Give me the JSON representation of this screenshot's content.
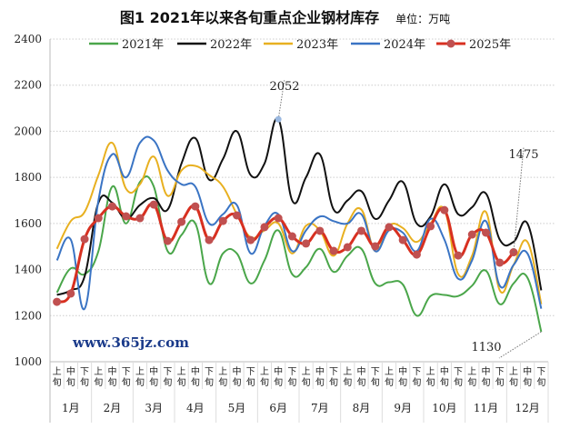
{
  "chart_data": {
    "type": "line",
    "title": "图1  2021年以来各旬重点企业钢材库存",
    "unit": "单位：万吨",
    "ylim": [
      1000,
      2400
    ],
    "yticks": [
      1000,
      1200,
      1400,
      1600,
      1800,
      2000,
      2200,
      2400
    ],
    "grid": true,
    "legend_position": "top",
    "months": [
      "1月",
      "2月",
      "3月",
      "4月",
      "5月",
      "6月",
      "7月",
      "8月",
      "9月",
      "10月",
      "11月",
      "12月"
    ],
    "periods": [
      "上旬",
      "中旬",
      "下旬"
    ],
    "series": [
      {
        "name": "2021年",
        "color": "#4aa64a",
        "values": [
          1300,
          1405,
          1380,
          1480,
          1760,
          1600,
          1780,
          1760,
          1480,
          1550,
          1600,
          1340,
          1470,
          1470,
          1340,
          1440,
          1570,
          1380,
          1410,
          1490,
          1390,
          1460,
          1490,
          1340,
          1345,
          1335,
          1200,
          1285,
          1290,
          1285,
          1330,
          1395,
          1250,
          1340,
          1365,
          1130
        ]
      },
      {
        "name": "2022年",
        "color": "#111111",
        "values": [
          1290,
          1310,
          1370,
          1690,
          1690,
          1620,
          1680,
          1710,
          1660,
          1860,
          1970,
          1790,
          1880,
          2000,
          1810,
          1860,
          2052,
          1700,
          1800,
          1900,
          1660,
          1700,
          1740,
          1620,
          1700,
          1780,
          1600,
          1630,
          1770,
          1640,
          1670,
          1730,
          1530,
          1520,
          1600,
          1310
        ]
      },
      {
        "name": "2023年",
        "color": "#e8b020",
        "values": [
          1490,
          1610,
          1650,
          1810,
          1950,
          1750,
          1770,
          1890,
          1720,
          1830,
          1850,
          1810,
          1760,
          1640,
          1540,
          1570,
          1600,
          1470,
          1590,
          1570,
          1460,
          1600,
          1660,
          1480,
          1590,
          1580,
          1520,
          1600,
          1660,
          1380,
          1460,
          1650,
          1310,
          1420,
          1520,
          1250
        ]
      },
      {
        "name": "2024年",
        "color": "#3a74c4",
        "values": [
          1440,
          1530,
          1230,
          1700,
          1900,
          1800,
          1950,
          1960,
          1830,
          1770,
          1760,
          1600,
          1640,
          1680,
          1470,
          1590,
          1640,
          1480,
          1570,
          1630,
          1610,
          1600,
          1640,
          1480,
          1570,
          1560,
          1480,
          1620,
          1530,
          1360,
          1440,
          1610,
          1330,
          1420,
          1470,
          1230
        ]
      },
      {
        "name": "2025年",
        "color": "#d83020",
        "marker_color": "#c05050",
        "values": [
          1260,
          1296,
          1532,
          1623,
          1674,
          1631,
          1623,
          1682,
          1524,
          1607,
          1674,
          1528,
          1611,
          1635,
          1528,
          1584,
          1623,
          1544,
          1513,
          1568,
          1481,
          1497,
          1568,
          1501,
          1584,
          1528,
          1465,
          1588,
          1658,
          1461,
          1552,
          1560,
          1430,
          1475
        ]
      }
    ],
    "annotations": [
      {
        "text": "2052",
        "series": "2022年",
        "index": 16
      },
      {
        "text": "1475",
        "series": "2025年",
        "index": 33
      },
      {
        "text": "1130",
        "series": "2021年",
        "index": 35
      }
    ]
  },
  "watermark": "www.365jz.com"
}
